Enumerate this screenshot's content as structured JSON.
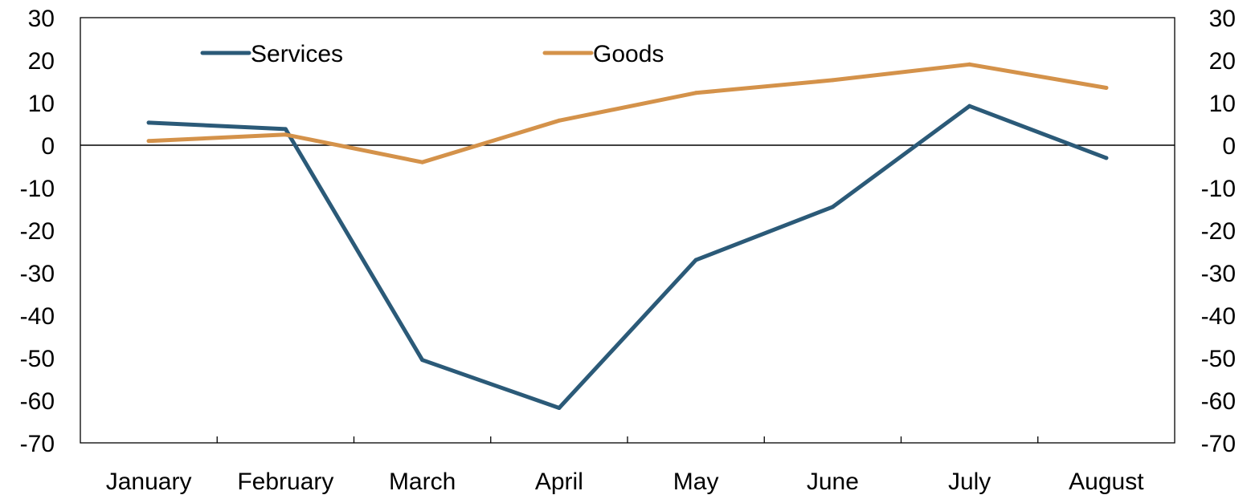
{
  "chart_data": {
    "type": "line",
    "title": "",
    "xlabel": "",
    "ylabel": "",
    "categories": [
      "January",
      "February",
      "March",
      "April",
      "May",
      "June",
      "July",
      "August"
    ],
    "ylim": [
      -70,
      30
    ],
    "yticks": [
      "30",
      "20",
      "10",
      "0",
      "-10",
      "-20",
      "-30",
      "-40",
      "-50",
      "-60",
      "-70"
    ],
    "secondary_axis": true,
    "grid": false,
    "zero_line": true,
    "legend_position": "top",
    "series": [
      {
        "name": "Services",
        "color": "#2b5a78",
        "values": [
          5.3,
          3.8,
          -50.5,
          -61.8,
          -27.0,
          -14.5,
          9.2,
          -3.0
        ]
      },
      {
        "name": "Goods",
        "color": "#d4924a",
        "values": [
          1.0,
          2.5,
          -4.0,
          5.8,
          12.3,
          15.3,
          19.0,
          13.5
        ]
      }
    ]
  }
}
